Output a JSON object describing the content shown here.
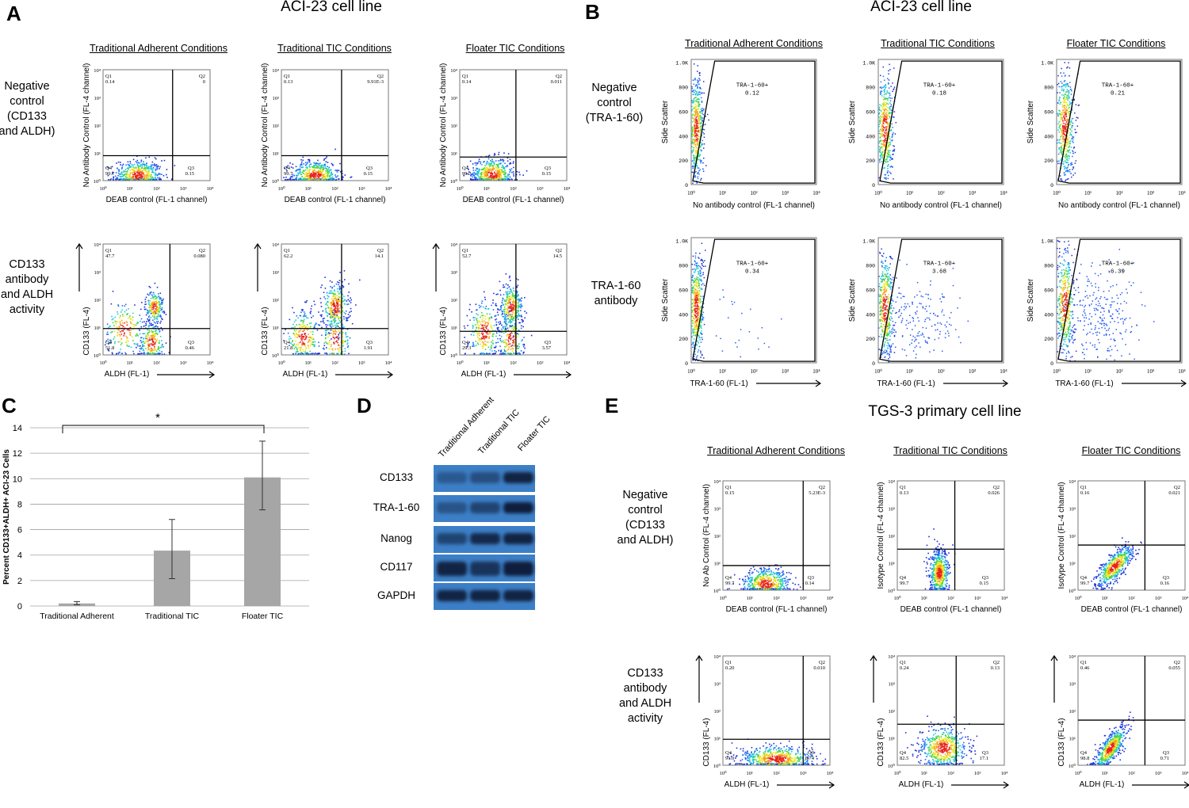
{
  "panel_letters": {
    "A": "A",
    "B": "B",
    "C": "C",
    "D": "D",
    "E": "E"
  },
  "panel_a": {
    "title": "ACI-23 cell line",
    "columns": [
      "Traditional Adherent Conditions",
      "Traditional TIC Conditions",
      "Floater TIC Conditions"
    ],
    "rows": [
      "Negative\ncontrol\n(CD133\nand ALDH)",
      "CD133\nantibody\nand ALDH\nactivity"
    ],
    "plots": [
      {
        "xlabel": "DEAB control (FL-1 channel)",
        "ylabel": "No Antibody Control (FL-4 channel)",
        "q": {
          "Q1": "0.14",
          "Q2": "0",
          "Q3": "0.15",
          "Q4": "99.7"
        },
        "gate": [
          2.6,
          0.9
        ],
        "arrows": false
      },
      {
        "xlabel": "DEAB control (FL-1 channel)",
        "ylabel": "No Antibody Control (FL-4 channel)",
        "q": {
          "Q1": "0.13",
          "Q2": "9.91E-3",
          "Q3": "0.15",
          "Q4": "99.7"
        },
        "gate": [
          2.25,
          0.9
        ],
        "arrows": false
      },
      {
        "xlabel": "DEAB control (FL-1 channel)",
        "ylabel": "No Antibody Control (FL-4 channel)",
        "q": {
          "Q1": "0.14",
          "Q2": "0.011",
          "Q3": "0.15",
          "Q4": "99.7"
        },
        "gate": [
          2.1,
          0.85
        ],
        "arrows": false
      },
      {
        "xlabel": "ALDH (FL-1)",
        "ylabel": "CD133 (FL-4)",
        "q": {
          "Q1": "47.7",
          "Q2": "0.080",
          "Q3": "0.46",
          "Q4": "51.8"
        },
        "gate": [
          2.5,
          0.95
        ],
        "arrows": true
      },
      {
        "xlabel": "ALDH (FL-1)",
        "ylabel": "CD133 (FL-4)",
        "q": {
          "Q1": "62.2",
          "Q2": "14.1",
          "Q3": "1.91",
          "Q4": "21.8"
        },
        "gate": [
          2.25,
          0.95
        ],
        "arrows": true
      },
      {
        "xlabel": "ALDH (FL-1)",
        "ylabel": "CD133 (FL-4)",
        "q": {
          "Q1": "52.7",
          "Q2": "14.5",
          "Q3": "3.57",
          "Q4": "29.3"
        },
        "gate": [
          2.1,
          0.85
        ],
        "arrows": true
      }
    ]
  },
  "panel_b": {
    "title": "ACI-23 cell line",
    "columns": [
      "Traditional Adherent Conditions",
      "Traditional TIC Conditions",
      "Floater TIC Conditions"
    ],
    "rows": [
      "Negative\ncontrol\n(TRA-1-60)",
      "TRA-1-60\nantibody"
    ],
    "y_ticks": [
      "0",
      "200",
      "400",
      "600",
      "800",
      "1.0K"
    ],
    "gate_name": "TRA-1-60+",
    "plots": [
      {
        "xlabel": "No antibody control (FL-1 channel)",
        "ylabel": "Side Scatter",
        "gate_value": "0.12",
        "arrows": false
      },
      {
        "xlabel": "No antibody control (FL-1 channel)",
        "ylabel": "Side Scatter",
        "gate_value": "0.18",
        "arrows": false
      },
      {
        "xlabel": "No antibody control (FL-1 channel)",
        "ylabel": "Side Scatter",
        "gate_value": "0.21",
        "arrows": false
      },
      {
        "xlabel": "TRA-1-60 (FL-1)",
        "ylabel": "Side Scatter",
        "gate_value": "0.34",
        "arrows": true
      },
      {
        "xlabel": "TRA-1-60 (FL-1)",
        "ylabel": "Side Scatter",
        "gate_value": "3.68",
        "arrows": true
      },
      {
        "xlabel": "TRA-1-60 (FL-1)",
        "ylabel": "Side Scatter",
        "gate_value": "6.39",
        "arrows": true
      }
    ]
  },
  "log_ticks": [
    "10⁰",
    "10¹",
    "10²",
    "10³",
    "10⁴"
  ],
  "chart_data": {
    "type": "bar",
    "title": "",
    "xlabel": "",
    "ylabel": "Percent CD133+ALDH+ ACI-23 Cells",
    "categories": [
      "Traditional Adherent",
      "Traditional TIC",
      "Floater TIC"
    ],
    "values": [
      0.2,
      4.35,
      10.1
    ],
    "error_low": [
      0.1,
      2.15,
      7.55
    ],
    "error_high": [
      0.35,
      6.8,
      12.95
    ],
    "ylim": [
      0,
      14
    ],
    "y_ticks": [
      0,
      2,
      4,
      6,
      8,
      10,
      12,
      14
    ],
    "grid": true,
    "bar_color": "#a6a6a6",
    "significance": {
      "from": "Traditional Adherent",
      "to": "Floater TIC",
      "label": "*"
    }
  },
  "panel_d": {
    "columns": [
      "Traditional Adherent",
      "Traditional TIC",
      "Floater TIC"
    ],
    "rows": [
      "CD133",
      "TRA-1-60",
      "Nanog",
      "CD117",
      "GAPDH"
    ],
    "background": "#3d7fc6"
  },
  "panel_e": {
    "title": "TGS-3 primary cell line",
    "columns": [
      "Traditional Adherent Conditions",
      "Traditional TIC Conditions",
      "Floater TIC Conditions"
    ],
    "rows": [
      "Negative\ncontrol\n(CD133\nand ALDH)",
      "CD133\nantibody\nand ALDH\nactivity"
    ],
    "plots": [
      {
        "xlabel": "DEAB control (FL-1 channel)",
        "ylabel": "No Ab Control (FL-4 channel)",
        "q": {
          "Q1": "0.15",
          "Q2": "5.23E-3",
          "Q3": "0.14",
          "Q4": "99.7"
        },
        "gate": [
          3.0,
          0.9
        ],
        "arrows": false
      },
      {
        "xlabel": "DEAB control (FL-1 channel)",
        "ylabel": "Isotype Control (FL-4 channel)",
        "q": {
          "Q1": "0.13",
          "Q2": "0.026",
          "Q3": "0.15",
          "Q4": "99.7"
        },
        "gate": [
          2.15,
          1.5
        ],
        "arrows": false
      },
      {
        "xlabel": "DEAB control (FL-1 channel)",
        "ylabel": "Isotype Control (FL-4 channel)",
        "q": {
          "Q1": "0.16",
          "Q2": "0.021",
          "Q3": "0.16",
          "Q4": "99.7"
        },
        "gate": [
          2.5,
          1.65
        ],
        "arrows": false
      },
      {
        "xlabel": "ALDH (FL-1)",
        "ylabel": "CD133 (FL-4)",
        "q": {
          "Q1": "0.20",
          "Q2": "0.010",
          "Q3": "8.74",
          "Q4": "91.0"
        },
        "gate": [
          3.0,
          0.95
        ],
        "arrows": true
      },
      {
        "xlabel": "ALDH (FL-1)",
        "ylabel": "CD133 (FL-4)",
        "q": {
          "Q1": "0.24",
          "Q2": "0.13",
          "Q3": "17.1",
          "Q4": "82.5"
        },
        "gate": [
          2.2,
          1.5
        ],
        "arrows": true
      },
      {
        "xlabel": "ALDH (FL-1)",
        "ylabel": "CD133 (FL-4)",
        "q": {
          "Q1": "0.46",
          "Q2": "0.055",
          "Q3": "0.71",
          "Q4": "98.8"
        },
        "gate": [
          2.5,
          1.65
        ],
        "arrows": true
      }
    ]
  }
}
